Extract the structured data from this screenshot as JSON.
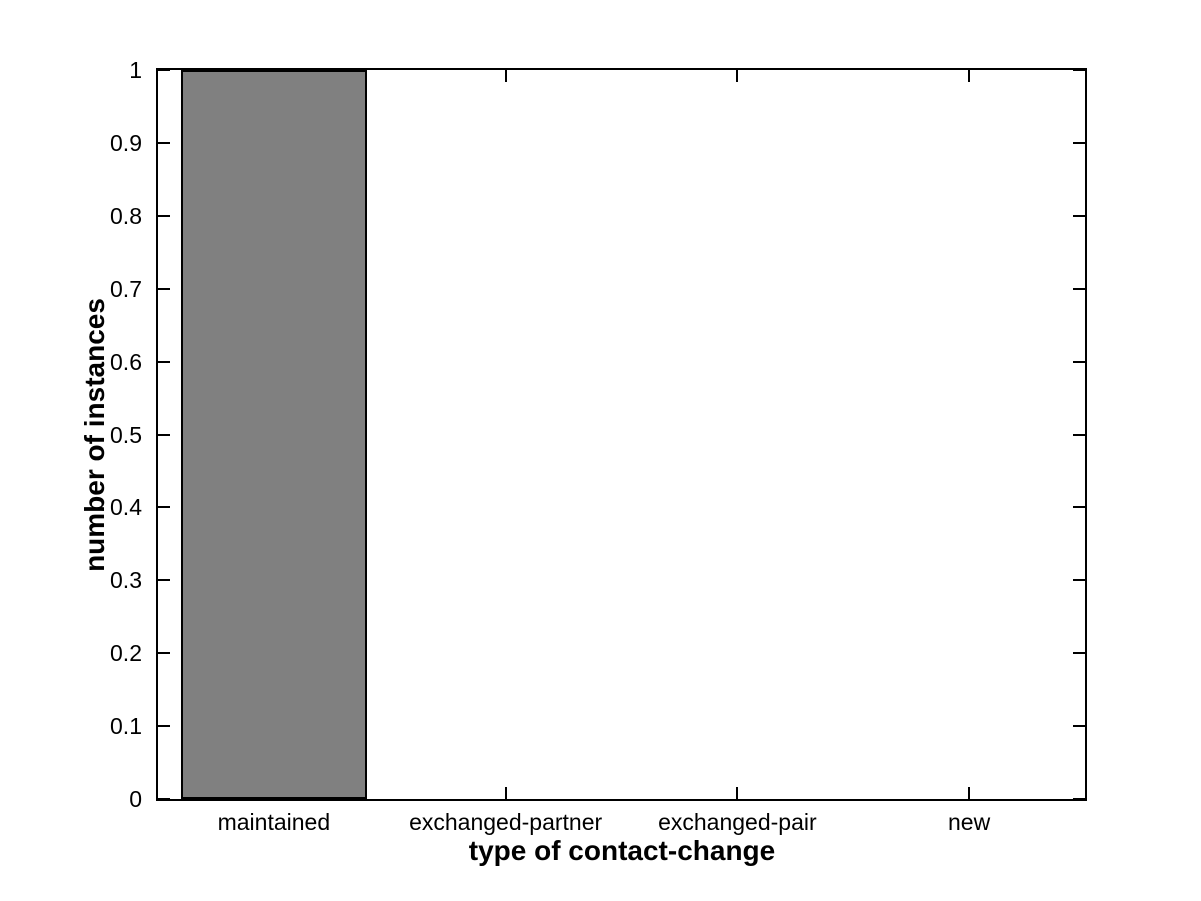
{
  "chart_data": {
    "type": "bar",
    "title": "",
    "xlabel": "type of contact-change",
    "ylabel": "number of instances",
    "categories": [
      "maintained",
      "exchanged-partner",
      "exchanged-pair",
      "new"
    ],
    "values": [
      1,
      0,
      0,
      0
    ],
    "ylim": [
      0,
      1
    ],
    "ytick_values": [
      0,
      0.1,
      0.2,
      0.3,
      0.4,
      0.5,
      0.6,
      0.7,
      0.8,
      0.9,
      1
    ],
    "ytick_labels": [
      "0",
      "0.1",
      "0.2",
      "0.3",
      "0.4",
      "0.5",
      "0.6",
      "0.7",
      "0.8",
      "0.9",
      "1"
    ],
    "bar_width_fraction": 0.8,
    "bar_color": "#808080",
    "bar_edge_color": "#000000",
    "axis_color": "#000000",
    "background_color": "#ffffff",
    "grid": false,
    "box": true,
    "tick_direction": "in"
  }
}
